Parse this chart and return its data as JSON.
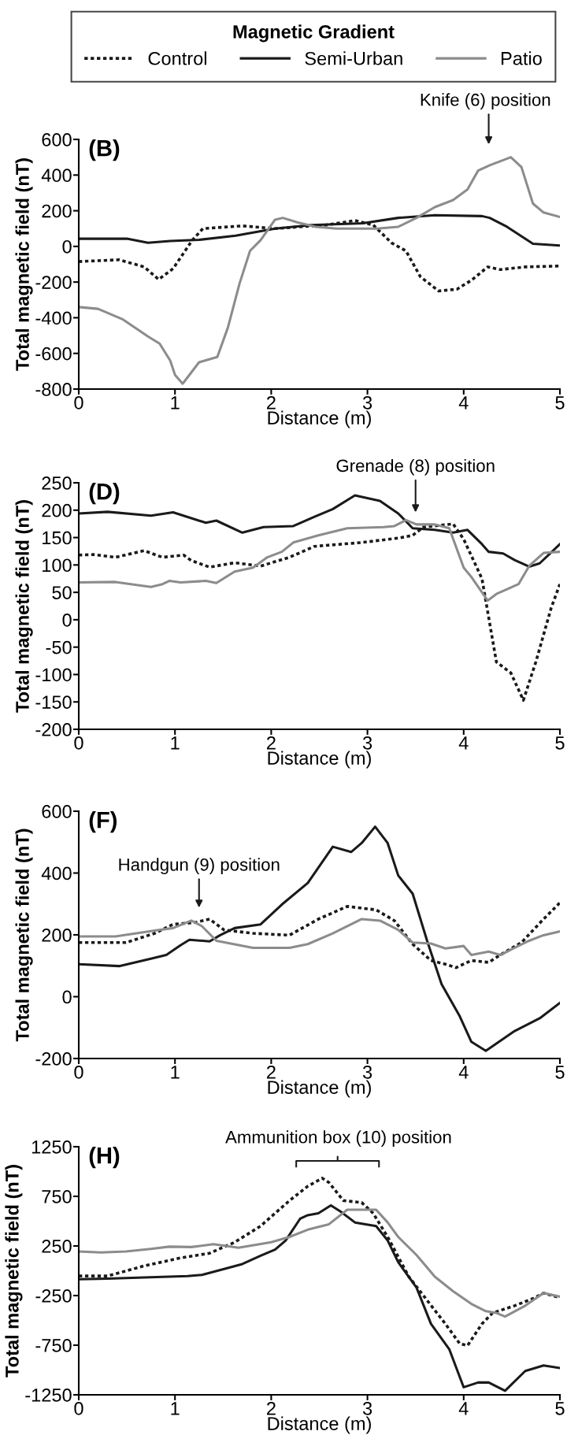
{
  "chart_data": [
    {
      "type": "line",
      "title": "(B)",
      "xlabel": "Distance (m)",
      "ylabel": "Total magnetic field (nT)",
      "legend": "top",
      "legend_title": "Magnetic Gradient",
      "xlim": [
        0,
        5
      ],
      "xticks": [
        0,
        1,
        2,
        3,
        4,
        5
      ],
      "ylim": [
        -800,
        600
      ],
      "yticks": [
        -800,
        -600,
        -400,
        -200,
        0,
        200,
        400,
        600
      ],
      "annotations": [
        "Knife (6) position"
      ],
      "series": [
        {
          "name": "Control",
          "color": "#1a1a1a",
          "line_style": "dotted",
          "x": [
            0,
            0.42,
            0.68,
            0.83,
            0.98,
            1.18,
            1.29,
            1.7,
            2.04,
            2.57,
            2.87,
            3.06,
            3.25,
            3.4,
            3.55,
            3.74,
            3.93,
            4.08,
            4.25,
            4.38,
            4.64,
            5
          ],
          "values": [
            -85,
            -75,
            -115,
            -185,
            -125,
            35,
            100,
            115,
            100,
            120,
            145,
            120,
            20,
            -25,
            -170,
            -250,
            -240,
            -190,
            -115,
            -130,
            -115,
            -110
          ]
        },
        {
          "name": "Semi-Urban",
          "color": "#1a1a1a",
          "line_style": "solid",
          "x": [
            0,
            0.5,
            0.72,
            0.95,
            1.25,
            1.63,
            2.04,
            2.42,
            2.95,
            3.32,
            3.7,
            4.19,
            4.27,
            4.45,
            4.72,
            5
          ],
          "values": [
            43,
            43,
            20,
            30,
            37,
            60,
            100,
            120,
            130,
            160,
            175,
            170,
            160,
            110,
            15,
            5
          ]
        },
        {
          "name": "Patio",
          "color": "#8c8c8c",
          "line_style": "solid",
          "x": [
            0,
            0.2,
            0.46,
            0.72,
            0.84,
            0.95,
            1.0,
            1.08,
            1.25,
            1.44,
            1.55,
            1.67,
            1.78,
            1.89,
            2.04,
            2.12,
            2.27,
            2.46,
            2.68,
            3.1,
            3.32,
            3.51,
            3.7,
            3.89,
            4.04,
            4.15,
            4.27,
            4.49,
            4.6,
            4.72,
            4.83,
            5
          ],
          "values": [
            -340,
            -350,
            -410,
            -505,
            -545,
            -640,
            -720,
            -770,
            -650,
            -620,
            -455,
            -210,
            -25,
            35,
            150,
            160,
            135,
            110,
            100,
            100,
            110,
            160,
            220,
            260,
            320,
            425,
            455,
            500,
            445,
            240,
            190,
            165
          ]
        }
      ]
    },
    {
      "type": "line",
      "title": "(D)",
      "xlabel": "Distance (m)",
      "ylabel": "Total magnetic field (nT)",
      "xlim": [
        0,
        5
      ],
      "xticks": [
        0,
        1,
        2,
        3,
        4,
        5
      ],
      "ylim": [
        -200,
        250
      ],
      "yticks": [
        -200,
        -150,
        -100,
        -50,
        0,
        50,
        100,
        150,
        200,
        250
      ],
      "annotations": [
        "Grenade (8) position"
      ],
      "series": [
        {
          "color": "#1a1a1a",
          "line_style": "dotted",
          "x": [
            0,
            0.15,
            0.38,
            0.68,
            0.87,
            1.09,
            1.17,
            1.36,
            1.62,
            1.89,
            2.19,
            2.45,
            2.94,
            3.32,
            3.47,
            3.58,
            3.89,
            4.0,
            4.19,
            4.34,
            4.49,
            4.62,
            4.75,
            4.91,
            5
          ],
          "values": [
            118,
            119,
            114,
            126,
            114,
            118,
            108,
            96,
            104,
            98,
            114,
            134,
            141,
            149,
            154,
            169,
            175,
            147,
            75,
            -77,
            -97,
            -147,
            -77,
            22,
            65
          ]
        },
        {
          "color": "#1a1a1a",
          "line_style": "solid",
          "x": [
            0,
            0.3,
            0.75,
            0.98,
            1.32,
            1.43,
            1.7,
            1.92,
            2.23,
            2.45,
            2.64,
            2.87,
            3.13,
            3.32,
            3.47,
            3.7,
            3.89,
            4.04,
            4.19,
            4.26,
            4.41,
            4.53,
            4.68,
            4.79,
            5
          ],
          "values": [
            194,
            197,
            190,
            196,
            177,
            181,
            159,
            169,
            171,
            188,
            202,
            227,
            217,
            194,
            167,
            164,
            159,
            164,
            138,
            124,
            121,
            109,
            97,
            103,
            138
          ]
        },
        {
          "color": "#8c8c8c",
          "line_style": "solid",
          "x": [
            0,
            0.38,
            0.75,
            0.87,
            0.94,
            1.06,
            1.32,
            1.43,
            1.62,
            1.81,
            1.96,
            2.11,
            2.23,
            2.49,
            2.79,
            3.17,
            3.28,
            3.4,
            3.51,
            3.7,
            3.85,
            4.0,
            4.08,
            4.25,
            4.34,
            4.57,
            4.68,
            4.83,
            5
          ],
          "values": [
            68,
            69,
            60,
            65,
            71,
            68,
            71,
            67,
            88,
            95,
            114,
            124,
            141,
            154,
            167,
            169,
            171,
            182,
            174,
            174,
            167,
            95,
            78,
            35,
            47,
            65,
            98,
            122,
            124
          ]
        }
      ]
    },
    {
      "type": "line",
      "title": "(F)",
      "xlabel": "Distance (m)",
      "ylabel": "Total magnetic field (nT)",
      "xlim": [
        0,
        5
      ],
      "xticks": [
        0,
        1,
        2,
        3,
        4,
        5
      ],
      "ylim": [
        -200,
        600
      ],
      "yticks": [
        -200,
        0,
        200,
        400,
        600
      ],
      "annotations": [
        "Handgun (9) position"
      ],
      "series": [
        {
          "color": "#1a1a1a",
          "line_style": "dotted",
          "x": [
            0,
            0.49,
            0.79,
            0.98,
            1.21,
            1.36,
            1.51,
            1.81,
            2.19,
            2.49,
            2.79,
            3.09,
            3.28,
            3.47,
            3.66,
            3.81,
            3.92,
            4.08,
            4.26,
            4.38,
            4.6,
            4.83,
            5
          ],
          "values": [
            175,
            175,
            205,
            234,
            240,
            251,
            216,
            205,
            199,
            251,
            292,
            281,
            246,
            170,
            117,
            105,
            94,
            117,
            111,
            135,
            175,
            251,
            304
          ]
        },
        {
          "color": "#1a1a1a",
          "line_style": "solid",
          "x": [
            0,
            0.42,
            0.75,
            0.91,
            1.06,
            1.15,
            1.36,
            1.47,
            1.62,
            1.89,
            2.11,
            2.38,
            2.64,
            2.83,
            2.94,
            3.08,
            3.21,
            3.32,
            3.47,
            3.62,
            3.77,
            3.96,
            4.08,
            4.23,
            4.53,
            4.79,
            5
          ],
          "values": [
            105,
            99,
            123,
            135,
            167,
            184,
            179,
            199,
            222,
            234,
            298,
            368,
            485,
            468,
            497,
            550,
            497,
            392,
            333,
            181,
            41,
            -64,
            -146,
            -175,
            -111,
            -70,
            -20
          ]
        },
        {
          "color": "#8c8c8c",
          "line_style": "solid",
          "x": [
            0,
            0.38,
            0.6,
            0.79,
            0.98,
            1.17,
            1.28,
            1.43,
            1.81,
            2.19,
            2.38,
            2.64,
            2.94,
            3.13,
            3.32,
            3.47,
            3.66,
            3.81,
            4.0,
            4.08,
            4.26,
            4.38,
            4.53,
            4.68,
            4.83,
            5
          ],
          "values": [
            195,
            195,
            205,
            214,
            222,
            246,
            228,
            181,
            158,
            158,
            170,
            205,
            251,
            246,
            216,
            175,
            172,
            156,
            164,
            135,
            146,
            135,
            158,
            181,
            199,
            211
          ]
        }
      ]
    },
    {
      "type": "line",
      "title": "(H)",
      "xlabel": "Distance (m)",
      "ylabel": "Total magnetic field (nT)",
      "xlim": [
        0,
        5
      ],
      "xticks": [
        0,
        1,
        2,
        3,
        4,
        5
      ],
      "ylim": [
        -1250,
        1250
      ],
      "yticks": [
        -1250,
        -750,
        -250,
        250,
        750,
        1250
      ],
      "annotations": [
        "Ammunition box (10) position"
      ],
      "series": [
        {
          "color": "#1a1a1a",
          "line_style": "dotted",
          "x": [
            0,
            0.3,
            0.68,
            1.06,
            1.36,
            1.62,
            1.89,
            2.19,
            2.38,
            2.53,
            2.6,
            2.75,
            2.94,
            3.06,
            3.21,
            3.43,
            3.62,
            3.81,
            3.96,
            4.04,
            4.19,
            4.3,
            4.53,
            4.72,
            4.83,
            5
          ],
          "values": [
            -53,
            -53,
            49,
            130,
            177,
            287,
            451,
            707,
            852,
            933,
            889,
            707,
            688,
            579,
            341,
            -60,
            -298,
            -535,
            -736,
            -754,
            -535,
            -425,
            -352,
            -280,
            -225,
            -272
          ]
        },
        {
          "color": "#1a1a1a",
          "line_style": "solid",
          "x": [
            0,
            0.3,
            0.68,
            1.13,
            1.28,
            1.51,
            1.7,
            1.89,
            2.04,
            2.15,
            2.3,
            2.38,
            2.49,
            2.62,
            2.72,
            2.87,
            3.09,
            3.21,
            3.32,
            3.51,
            3.66,
            3.85,
            4.0,
            4.15,
            4.26,
            4.43,
            4.64,
            4.83,
            5
          ],
          "values": [
            -86,
            -79,
            -68,
            -53,
            -42,
            18,
            68,
            151,
            213,
            305,
            524,
            560,
            579,
            659,
            597,
            487,
            451,
            305,
            86,
            -170,
            -535,
            -790,
            -1174,
            -1126,
            -1126,
            -1210,
            -1010,
            -955,
            -980
          ]
        },
        {
          "color": "#8c8c8c",
          "line_style": "solid",
          "x": [
            0,
            0.23,
            0.49,
            0.75,
            0.94,
            1.17,
            1.4,
            1.66,
            2.0,
            2.19,
            2.38,
            2.6,
            2.79,
            2.94,
            3.09,
            3.21,
            3.32,
            3.51,
            3.7,
            3.89,
            4.08,
            4.23,
            4.34,
            4.43,
            4.64,
            4.83,
            5
          ],
          "values": [
            195,
            184,
            195,
            221,
            243,
            239,
            268,
            232,
            287,
            341,
            414,
            469,
            615,
            615,
            615,
            487,
            341,
            159,
            -60,
            -206,
            -334,
            -407,
            -425,
            -462,
            -352,
            -225,
            -261
          ]
        }
      ]
    }
  ]
}
